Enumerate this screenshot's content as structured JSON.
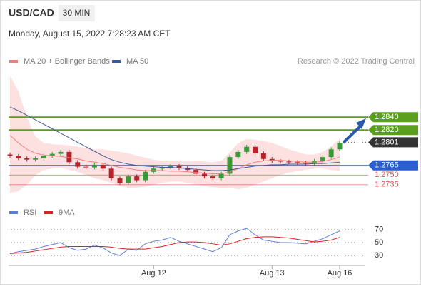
{
  "header": {
    "symbol": "USD/CAD",
    "timeframe": "30 MIN",
    "timestamp": "Monday, August 15, 2022 7:28:23 AM CET",
    "copyright": "Research © 2022 Trading Central"
  },
  "chart_data": [
    {
      "type": "candlestick",
      "categories": [
        null,
        null,
        null,
        null,
        null,
        null,
        null,
        null,
        null,
        null,
        null,
        null,
        null,
        null,
        null,
        null,
        null,
        "Aug 12",
        null,
        null,
        null,
        null,
        null,
        null,
        null,
        null,
        null,
        null,
        null,
        null,
        null,
        "Aug 13",
        null,
        null,
        null,
        null,
        null,
        null,
        null,
        "Aug 16"
      ],
      "open": [
        1.2782,
        1.278,
        1.2776,
        1.2774,
        1.2776,
        1.278,
        1.2783,
        1.2786,
        1.277,
        1.2763,
        1.2762,
        1.2766,
        1.276,
        1.2745,
        1.2738,
        1.2748,
        1.2742,
        1.2755,
        1.276,
        1.2762,
        1.2764,
        1.2761,
        1.2758,
        1.2752,
        1.2748,
        1.2745,
        1.2752,
        1.2778,
        1.2786,
        1.2794,
        1.2784,
        1.2775,
        1.2772,
        1.2771,
        1.277,
        1.2769,
        1.2768,
        1.2772,
        1.2778,
        1.279
      ],
      "high": [
        1.2785,
        1.2783,
        1.2779,
        1.2779,
        1.2783,
        1.2786,
        1.2789,
        1.2789,
        1.2773,
        1.2766,
        1.2769,
        1.2769,
        1.2763,
        1.2748,
        1.2751,
        1.2751,
        1.2758,
        1.2763,
        1.2765,
        1.2767,
        1.2767,
        1.2764,
        1.2761,
        1.2755,
        1.2751,
        1.2755,
        1.2781,
        1.2789,
        1.2797,
        1.2797,
        1.2787,
        1.2778,
        1.2775,
        1.2774,
        1.2773,
        1.2772,
        1.2775,
        1.2781,
        1.2793,
        1.2803
      ],
      "low": [
        1.2777,
        1.2773,
        1.2771,
        1.2771,
        1.2773,
        1.2777,
        1.278,
        1.2767,
        1.276,
        1.2759,
        1.2759,
        1.2757,
        1.2742,
        1.2735,
        1.2735,
        1.2739,
        1.2739,
        1.2752,
        1.2757,
        1.2759,
        1.2758,
        1.2755,
        1.2749,
        1.2745,
        1.2742,
        1.2742,
        1.2749,
        1.2775,
        1.2783,
        1.2781,
        1.2772,
        1.2769,
        1.2768,
        1.2767,
        1.2766,
        1.2765,
        1.2765,
        1.2769,
        1.2775,
        1.2787
      ],
      "close": [
        1.278,
        1.2776,
        1.2774,
        1.2776,
        1.278,
        1.2783,
        1.2786,
        1.277,
        1.2763,
        1.2762,
        1.2766,
        1.276,
        1.2745,
        1.2738,
        1.2748,
        1.2742,
        1.2755,
        1.276,
        1.2762,
        1.2764,
        1.2761,
        1.2758,
        1.2752,
        1.2748,
        1.2745,
        1.2752,
        1.2778,
        1.2786,
        1.2794,
        1.2784,
        1.2775,
        1.2772,
        1.2771,
        1.277,
        1.2769,
        1.2768,
        1.2772,
        1.2778,
        1.279,
        1.28
      ],
      "up_color": "#3a9a3a",
      "down_color": "#b8232b",
      "series": [
        {
          "name": "MA 20 + Bollinger Bands",
          "color": "#f08080",
          "band_color": "#fde0e0",
          "values": [
            1.2812,
            1.28,
            1.279,
            1.2784,
            1.2781,
            1.278,
            1.2779,
            1.2777,
            1.2775,
            1.2772,
            1.277,
            1.2768,
            1.2765,
            1.2762,
            1.276,
            1.2758,
            1.2757,
            1.2757,
            1.2757,
            1.2756,
            1.2756,
            1.2755,
            1.2754,
            1.2753,
            1.2752,
            1.2752,
            1.2755,
            1.276,
            1.2766,
            1.277,
            1.2772,
            1.2773,
            1.2773,
            1.2772,
            1.2771,
            1.277,
            1.277,
            1.2771,
            1.2774,
            1.2778
          ],
          "upper": [
            1.2905,
            1.288,
            1.284,
            1.281,
            1.28,
            1.2798,
            1.2797,
            1.2796,
            1.2794,
            1.2792,
            1.279,
            1.279,
            1.2788,
            1.2786,
            1.2784,
            1.278,
            1.2777,
            1.2774,
            1.2772,
            1.2772,
            1.2772,
            1.2772,
            1.2772,
            1.2771,
            1.277,
            1.2772,
            1.2785,
            1.28,
            1.2806,
            1.2805,
            1.2803,
            1.28,
            1.2795,
            1.279,
            1.2786,
            1.2782,
            1.2782,
            1.2786,
            1.2795,
            1.2806
          ],
          "lower": [
            1.2722,
            1.2725,
            1.2735,
            1.275,
            1.2758,
            1.276,
            1.2761,
            1.2758,
            1.2755,
            1.275,
            1.2745,
            1.2742,
            1.2738,
            1.2733,
            1.273,
            1.273,
            1.2732,
            1.2735,
            1.2738,
            1.274,
            1.274,
            1.2738,
            1.2735,
            1.2733,
            1.2731,
            1.273,
            1.273,
            1.2728,
            1.273,
            1.2735,
            1.274,
            1.2745,
            1.275,
            1.2754,
            1.2756,
            1.2758,
            1.276,
            1.276,
            1.2758,
            1.2756
          ]
        },
        {
          "name": "MA 50",
          "color": "#3b5b9a",
          "values": [
            1.2856,
            1.285,
            1.2843,
            1.2836,
            1.2829,
            1.2822,
            1.2815,
            1.2808,
            1.2801,
            1.2794,
            1.2787,
            1.278,
            1.2774,
            1.277,
            1.2767,
            1.2765,
            1.2764,
            1.2763,
            1.2762,
            1.2762,
            1.2761,
            1.276,
            1.2759,
            1.2758,
            1.2757,
            1.2757,
            1.2758,
            1.276,
            1.2762,
            1.2764,
            1.2765,
            1.2766,
            1.2766,
            1.2767,
            1.2767,
            1.2767,
            1.2768,
            1.2768,
            1.2769,
            1.277
          ]
        }
      ],
      "levels": [
        {
          "value": 1.284,
          "label": "1.2840",
          "color": "#5a9e1e",
          "style": "box"
        },
        {
          "value": 1.282,
          "label": "1.2820",
          "color": "#5a9e1e",
          "style": "box"
        },
        {
          "value": 1.2801,
          "label": "1.2801",
          "color": "#333333",
          "style": "current"
        },
        {
          "value": 1.2765,
          "label": "1.2765",
          "color": "#2a5ecf",
          "style": "box"
        },
        {
          "value": 1.275,
          "label": "1.2750",
          "color": "#e05050",
          "style": "text"
        },
        {
          "value": 1.2735,
          "label": "1.2735",
          "color": "#e05050",
          "style": "text"
        }
      ],
      "ylim": [
        1.2717,
        1.2917
      ]
    },
    {
      "type": "line",
      "series": [
        {
          "name": "RSI",
          "color": "#5b7fd6",
          "values": [
            33,
            36,
            38,
            40,
            44,
            47,
            50,
            42,
            38,
            40,
            46,
            42,
            34,
            30,
            40,
            38,
            48,
            52,
            54,
            58,
            52,
            48,
            44,
            40,
            36,
            42,
            62,
            68,
            72,
            62,
            54,
            52,
            50,
            50,
            49,
            48,
            52,
            56,
            62,
            68
          ]
        },
        {
          "name": "9MA",
          "color": "#e02020",
          "values": [
            33,
            34,
            35,
            37,
            39,
            41,
            43,
            44,
            44,
            44,
            44,
            44,
            43,
            41,
            40,
            40,
            40,
            42,
            44,
            47,
            50,
            51,
            51,
            50,
            48,
            46,
            48,
            52,
            56,
            58,
            59,
            59,
            58,
            57,
            55,
            53,
            51,
            52,
            54,
            58
          ]
        }
      ],
      "ylim": [
        17,
        83
      ],
      "yticks": [
        30,
        50,
        70
      ],
      "grid": true
    }
  ]
}
